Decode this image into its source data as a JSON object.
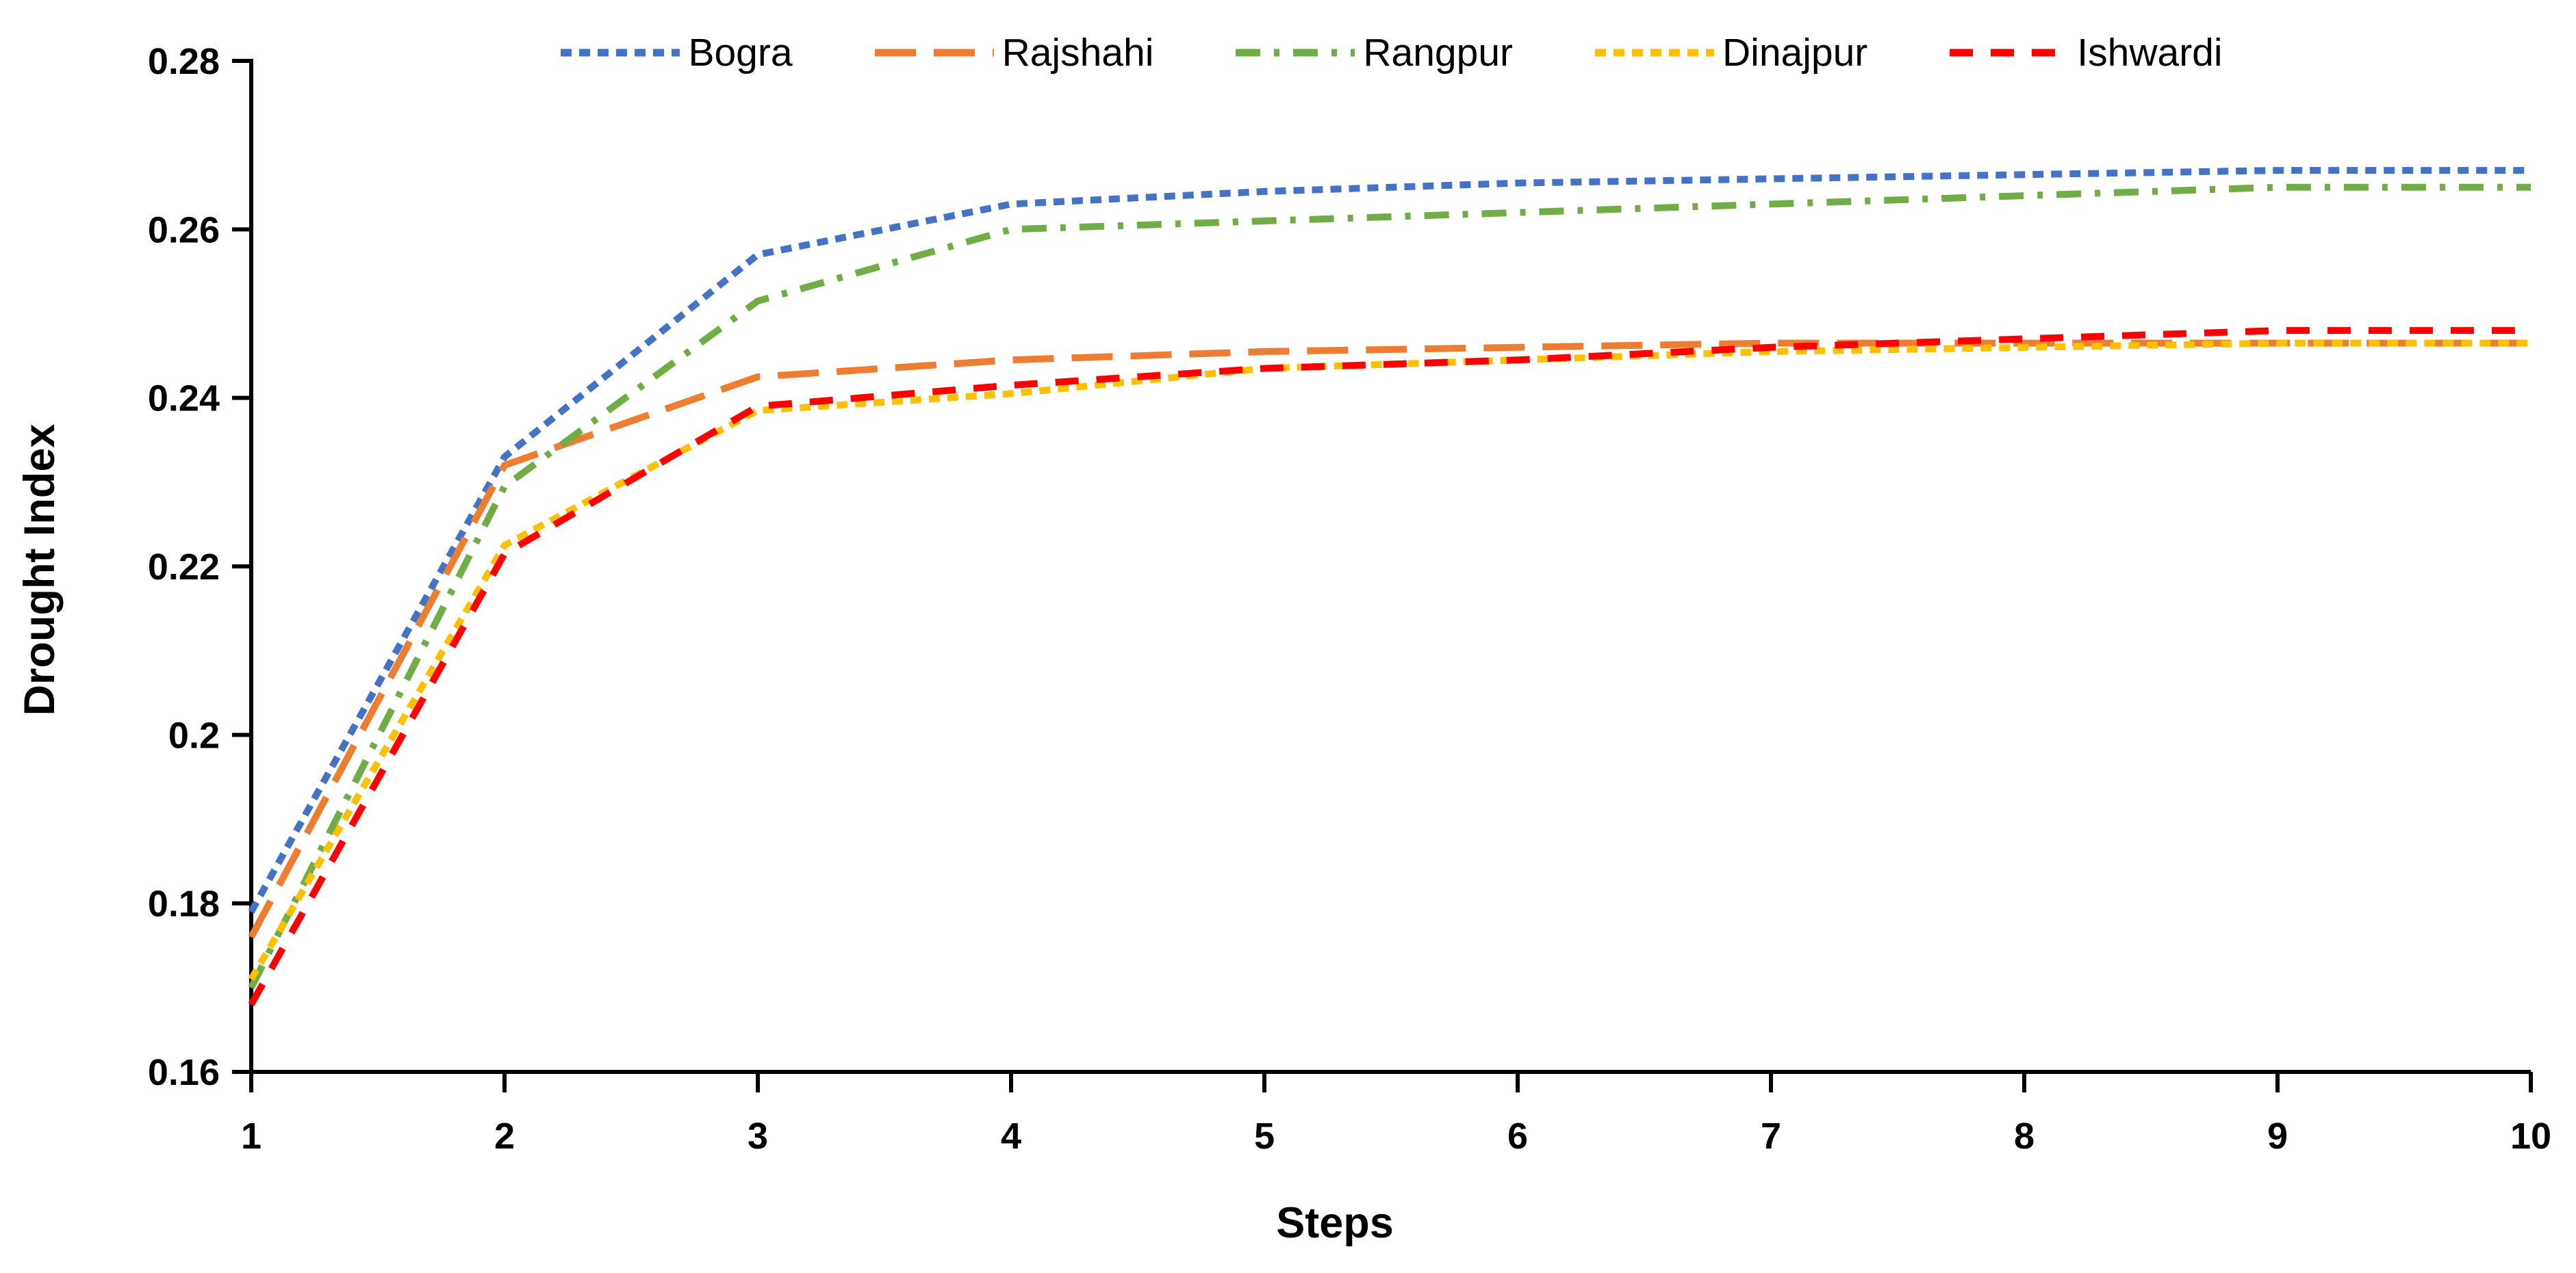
{
  "chart_data": {
    "type": "line",
    "xlabel": "Steps",
    "ylabel": "Drought Index",
    "x": [
      1,
      2,
      3,
      4,
      5,
      6,
      7,
      8,
      9,
      10
    ],
    "x_tick_labels": [
      "1",
      "2",
      "3",
      "4",
      "5",
      "6",
      "7",
      "8",
      "9",
      "10"
    ],
    "y_tick_labels": [
      "0.16",
      "0.18",
      "0.2",
      "0.22",
      "0.24",
      "0.26",
      "0.28"
    ],
    "xlim": [
      1,
      10
    ],
    "ylim": [
      0.16,
      0.28
    ],
    "grid": false,
    "legend_position": "top",
    "axis_color": "#000000",
    "background_color": "#ffffff",
    "series": [
      {
        "name": "Bogra",
        "color": "#4472C4",
        "dash_style": "square-dot",
        "values": [
          0.179,
          0.233,
          0.257,
          0.263,
          0.2645,
          0.2655,
          0.266,
          0.2665,
          0.267,
          0.267
        ]
      },
      {
        "name": "Rajshahi",
        "color": "#ED7D31",
        "dash_style": "long-dash",
        "values": [
          0.176,
          0.232,
          0.2425,
          0.2445,
          0.2455,
          0.246,
          0.2465,
          0.2465,
          0.2465,
          0.2465
        ]
      },
      {
        "name": "Rangpur",
        "color": "#70AD47",
        "dash_style": "dash-dot",
        "values": [
          0.17,
          0.2295,
          0.2515,
          0.26,
          0.261,
          0.262,
          0.263,
          0.264,
          0.265,
          0.265
        ]
      },
      {
        "name": "Dinajpur",
        "color": "#FFC000",
        "dash_style": "square-dot",
        "values": [
          0.171,
          0.2225,
          0.2385,
          0.2405,
          0.2435,
          0.2445,
          0.2455,
          0.246,
          0.2465,
          0.2465
        ]
      },
      {
        "name": "Ishwardi",
        "color": "#FF0000",
        "dash_style": "dash",
        "values": [
          0.168,
          0.2215,
          0.239,
          0.2415,
          0.2435,
          0.2445,
          0.246,
          0.247,
          0.248,
          0.248
        ]
      }
    ]
  }
}
